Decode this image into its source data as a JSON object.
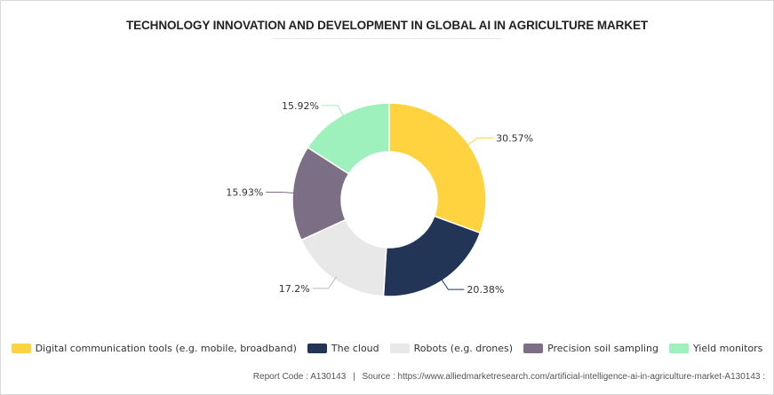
{
  "title": "TECHNOLOGY INNOVATION AND DEVELOPMENT IN GLOBAL AI IN AGRICULTURE MARKET",
  "chart_data": {
    "type": "pie",
    "subtype": "donut",
    "categories": [
      "Digital communication tools (e.g. mobile, broadband)",
      "The cloud",
      "Robots (e.g. drones)",
      "Precision soil sampling",
      "Yield monitors"
    ],
    "values": [
      30.57,
      20.38,
      17.2,
      15.93,
      15.92
    ],
    "labels": [
      "30.57%",
      "20.38%",
      "17.2%",
      "15.93%",
      "15.92%"
    ],
    "colors": [
      "#ffd23f",
      "#233556",
      "#e8e8e8",
      "#7c6e85",
      "#9ef0bd"
    ],
    "legend_position": "bottom"
  },
  "footer": {
    "report_code": "Report Code : A130143",
    "separator": "|",
    "source": "Source : https://www.alliedmarketresearch.com/artificial-intelligence-ai-in-agriculture-market-A130143 :"
  }
}
